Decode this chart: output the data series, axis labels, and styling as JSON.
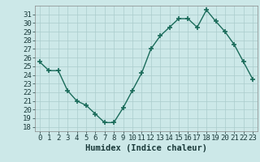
{
  "x": [
    0,
    1,
    2,
    3,
    4,
    5,
    6,
    7,
    8,
    9,
    10,
    11,
    12,
    13,
    14,
    15,
    16,
    17,
    18,
    19,
    20,
    21,
    22,
    23
  ],
  "y": [
    25.5,
    24.5,
    24.5,
    22.2,
    21.0,
    20.5,
    19.5,
    18.5,
    18.5,
    20.2,
    22.2,
    24.2,
    27.0,
    28.5,
    29.5,
    30.5,
    30.5,
    29.5,
    31.5,
    30.2,
    29.0,
    27.5,
    25.5,
    23.5
  ],
  "xlabel": "Humidex (Indice chaleur)",
  "xlim": [
    -0.5,
    23.5
  ],
  "ylim": [
    17.5,
    32
  ],
  "yticks": [
    18,
    19,
    20,
    21,
    22,
    23,
    24,
    25,
    26,
    27,
    28,
    29,
    30,
    31
  ],
  "xticks": [
    0,
    1,
    2,
    3,
    4,
    5,
    6,
    7,
    8,
    9,
    10,
    11,
    12,
    13,
    14,
    15,
    16,
    17,
    18,
    19,
    20,
    21,
    22,
    23
  ],
  "line_color": "#1a6b5a",
  "marker": "+",
  "bg_color": "#cce8e8",
  "grid_color": "#aacccc",
  "tick_label_color": "#1a3a3a",
  "xlabel_color": "#1a3a3a",
  "xlabel_fontsize": 7.5,
  "tick_fontsize": 6.5
}
